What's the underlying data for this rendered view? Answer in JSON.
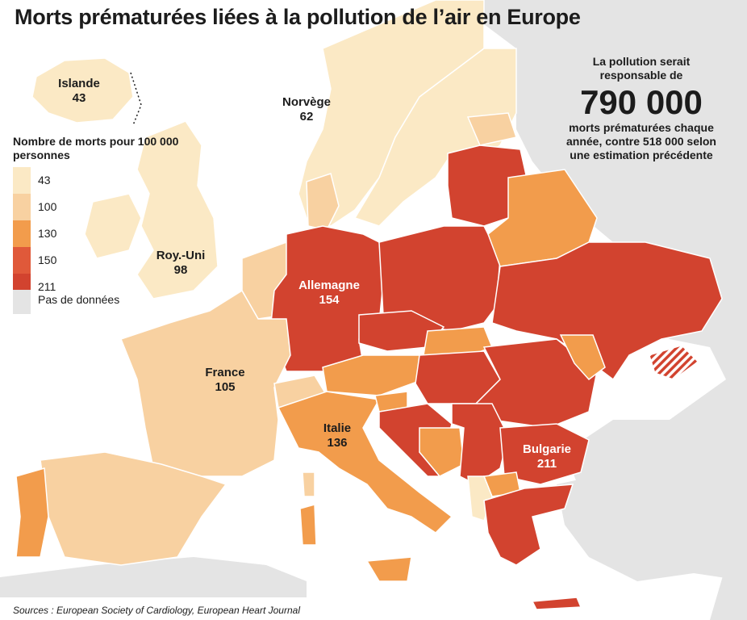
{
  "title": "Morts prématurées liées à la pollution de l’air en Europe",
  "legend": {
    "title": "Nombre de morts pour 100 000 personnes",
    "classes": [
      {
        "label": "43",
        "color": "#fbe9c5"
      },
      {
        "label": "100",
        "color": "#f8d1a1"
      },
      {
        "label": "130",
        "color": "#f29c4c"
      },
      {
        "label": "150",
        "color": "#e0593a"
      },
      {
        "label": "211",
        "color": "#d2432f"
      }
    ],
    "no_data_label": "Pas de données",
    "no_data_color": "#e4e4e4"
  },
  "countries": [
    {
      "name": "Islande",
      "value": "43"
    },
    {
      "name": "Norvège",
      "value": "62"
    },
    {
      "name": "Roy.-Uni",
      "value": "98"
    },
    {
      "name": "Allemagne",
      "value": "154"
    },
    {
      "name": "France",
      "value": "105"
    },
    {
      "name": "Italie",
      "value": "136"
    },
    {
      "name": "Bulgarie",
      "value": "211"
    }
  ],
  "callout": {
    "line1": "La pollution serait responsable de",
    "number": "790 000",
    "line2": "morts prématurées chaque année, contre 518 000 selon une estimation précédente"
  },
  "source": "Sources : European Society of Cardiology, European Heart Journal"
}
